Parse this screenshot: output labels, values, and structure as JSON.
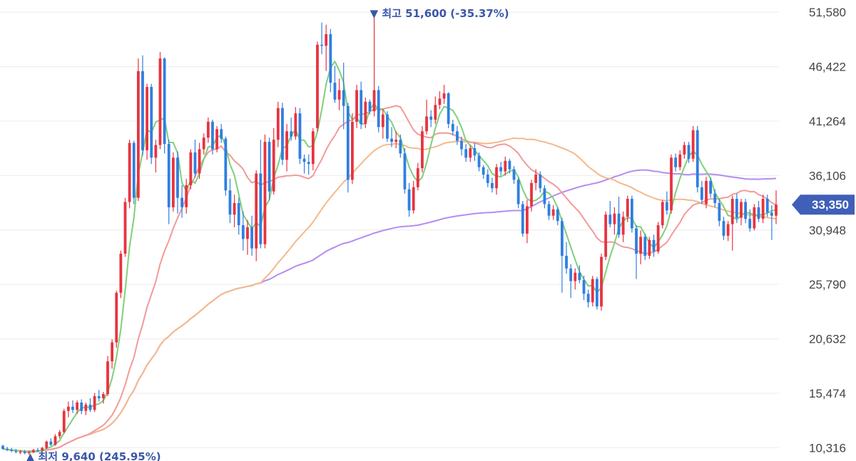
{
  "chart_data": {
    "type": "candlestick",
    "y_scale": {
      "min": 9800,
      "max": 52200
    },
    "y_ticks": [
      "51,580",
      "46,422",
      "41,264",
      "36,106",
      "30,948",
      "25,790",
      "20,632",
      "15,474",
      "10,316"
    ],
    "y_tick_values": [
      51580,
      46422,
      41264,
      36106,
      30948,
      25790,
      20632,
      15474,
      10316
    ],
    "current_price": {
      "label": "33,350",
      "value": 33350
    },
    "annotations": {
      "high": {
        "text": "최고 51,600 (-35.37%)",
        "marker": "▼",
        "value": 51600,
        "index": 85
      },
      "low": {
        "text": "최저 9,640 (245.95%)",
        "marker": "▲",
        "value": 9640,
        "index": 6
      }
    },
    "colors": {
      "up": "#e8333f",
      "down": "#2f7fe0",
      "ma5": "#7fd07a",
      "ma20": "#f29a9a",
      "ma60": "#f5b98a",
      "ma120": "#b58cf2",
      "grid": "#ececec",
      "current_badge": "#3f5fb8"
    },
    "candles": [
      [
        10500,
        10600,
        10150,
        10200
      ],
      [
        10200,
        10400,
        10000,
        10100
      ],
      [
        10100,
        10300,
        9900,
        10000
      ],
      [
        10000,
        10200,
        9800,
        9900
      ],
      [
        9900,
        10100,
        9700,
        9950
      ],
      [
        9950,
        10100,
        9700,
        9800
      ],
      [
        9800,
        10050,
        9640,
        9900
      ],
      [
        9900,
        10200,
        9800,
        10100
      ],
      [
        10100,
        10300,
        9900,
        10050
      ],
      [
        10050,
        10400,
        9950,
        10300
      ],
      [
        10300,
        11000,
        10200,
        10900
      ],
      [
        10900,
        11200,
        10500,
        10600
      ],
      [
        10600,
        11600,
        10500,
        11400
      ],
      [
        11400,
        12000,
        11200,
        11800
      ],
      [
        11800,
        14000,
        11700,
        13800
      ],
      [
        13800,
        14700,
        13200,
        14200
      ],
      [
        14200,
        14800,
        13600,
        13900
      ],
      [
        13900,
        14800,
        13500,
        14600
      ],
      [
        14600,
        14900,
        13500,
        13800
      ],
      [
        13800,
        14600,
        13400,
        14400
      ],
      [
        14400,
        15000,
        13700,
        13900
      ],
      [
        13900,
        15500,
        13700,
        15200
      ],
      [
        15200,
        15800,
        14700,
        15000
      ],
      [
        15000,
        15600,
        14500,
        15400
      ],
      [
        15400,
        19000,
        15200,
        18500
      ],
      [
        18500,
        20600,
        17800,
        20300
      ],
      [
        20300,
        25200,
        19800,
        25000
      ],
      [
        25000,
        29000,
        24500,
        28700
      ],
      [
        28700,
        34000,
        28400,
        33600
      ],
      [
        33600,
        39500,
        33000,
        39200
      ],
      [
        39200,
        39400,
        33400,
        34000
      ],
      [
        34000,
        47200,
        33700,
        46000
      ],
      [
        46000,
        47500,
        38000,
        38500
      ],
      [
        38500,
        44800,
        37600,
        44500
      ],
      [
        44500,
        44800,
        37200,
        37800
      ],
      [
        37800,
        39500,
        36400,
        39000
      ],
      [
        39000,
        47800,
        38600,
        47200
      ],
      [
        47200,
        47300,
        38200,
        39100
      ],
      [
        39100,
        39500,
        31500,
        33100
      ],
      [
        33100,
        38300,
        32700,
        37800
      ],
      [
        37800,
        38400,
        32500,
        34000
      ],
      [
        34000,
        35200,
        32100,
        33100
      ],
      [
        33100,
        35800,
        32500,
        35200
      ],
      [
        35200,
        38600,
        34800,
        38300
      ],
      [
        38300,
        39500,
        35900,
        36300
      ],
      [
        36300,
        39200,
        35800,
        38600
      ],
      [
        38600,
        40100,
        38100,
        39700
      ],
      [
        39700,
        41600,
        39200,
        41200
      ],
      [
        41200,
        41400,
        38100,
        38600
      ],
      [
        38600,
        40800,
        38300,
        40500
      ],
      [
        40500,
        41000,
        39200,
        39600
      ],
      [
        39600,
        39800,
        34200,
        34700
      ],
      [
        34700,
        35800,
        31600,
        32400
      ],
      [
        32400,
        34300,
        31200,
        33500
      ],
      [
        33500,
        34000,
        30500,
        31400
      ],
      [
        31400,
        32700,
        29000,
        30100
      ],
      [
        30100,
        31900,
        28600,
        31200
      ],
      [
        31200,
        32300,
        28500,
        29200
      ],
      [
        29200,
        36600,
        28000,
        36300
      ],
      [
        36300,
        39500,
        29200,
        29600
      ],
      [
        29600,
        40000,
        29200,
        39300
      ],
      [
        39300,
        39700,
        33800,
        34600
      ],
      [
        34600,
        40600,
        34300,
        39500
      ],
      [
        39500,
        43100,
        38800,
        42500
      ],
      [
        42500,
        43000,
        37100,
        37600
      ],
      [
        37600,
        41000,
        36500,
        40300
      ],
      [
        40300,
        41600,
        39400,
        39800
      ],
      [
        39800,
        42600,
        39500,
        42000
      ],
      [
        42000,
        42500,
        37200,
        37700
      ],
      [
        37700,
        38100,
        36300,
        37400
      ],
      [
        37400,
        38100,
        36200,
        37200
      ],
      [
        37200,
        40600,
        36600,
        40300
      ],
      [
        40600,
        48800,
        40300,
        48500
      ],
      [
        48500,
        50600,
        47600,
        48400
      ],
      [
        48400,
        50400,
        46000,
        49500
      ],
      [
        49500,
        50000,
        44000,
        44900
      ],
      [
        44900,
        46500,
        43000,
        43300
      ],
      [
        43300,
        45300,
        42300,
        44200
      ],
      [
        44200,
        46800,
        40500,
        42700
      ],
      [
        42700,
        43000,
        34500,
        35700
      ],
      [
        35700,
        42000,
        35300,
        41200
      ],
      [
        41200,
        44700,
        40600,
        44200
      ],
      [
        44200,
        45000,
        40500,
        41000
      ],
      [
        41000,
        43500,
        40600,
        43100
      ],
      [
        43100,
        43300,
        41900,
        42200
      ],
      [
        42200,
        51600,
        41700,
        44200
      ],
      [
        44200,
        44600,
        40200,
        40700
      ],
      [
        40700,
        42400,
        39600,
        41900
      ],
      [
        41900,
        42200,
        39300,
        39600
      ],
      [
        39600,
        40700,
        38800,
        39300
      ],
      [
        39300,
        40300,
        38700,
        39500
      ],
      [
        39500,
        40000,
        37800,
        38200
      ],
      [
        38200,
        38700,
        34400,
        34800
      ],
      [
        34800,
        35400,
        32200,
        32800
      ],
      [
        32800,
        35600,
        32500,
        35000
      ],
      [
        35000,
        37300,
        34700,
        36800
      ],
      [
        36800,
        40800,
        36400,
        40300
      ],
      [
        40300,
        43300,
        40000,
        41700
      ],
      [
        41700,
        42300,
        40700,
        41400
      ],
      [
        41400,
        43600,
        41000,
        42800
      ],
      [
        42800,
        44100,
        42400,
        43400
      ],
      [
        43400,
        44700,
        42900,
        43900
      ],
      [
        43900,
        44000,
        40600,
        41000
      ],
      [
        41000,
        41400,
        39900,
        40300
      ],
      [
        40300,
        40800,
        39000,
        39400
      ],
      [
        39400,
        39800,
        38000,
        38600
      ],
      [
        38600,
        39100,
        37400,
        37800
      ],
      [
        37800,
        39000,
        37400,
        38700
      ],
      [
        38700,
        39200,
        37500,
        38000
      ],
      [
        38000,
        38300,
        36500,
        36900
      ],
      [
        36900,
        37100,
        35800,
        36200
      ],
      [
        36200,
        36700,
        35000,
        35400
      ],
      [
        35400,
        35900,
        34500,
        34900
      ],
      [
        34900,
        37200,
        34300,
        36900
      ],
      [
        36900,
        37400,
        36100,
        36500
      ],
      [
        36500,
        37900,
        36100,
        37500
      ],
      [
        37500,
        37700,
        36300,
        36700
      ],
      [
        36700,
        37000,
        35300,
        35700
      ],
      [
        35700,
        35900,
        33000,
        33400
      ],
      [
        33400,
        33700,
        30300,
        30600
      ],
      [
        30600,
        33800,
        29700,
        33200
      ],
      [
        33200,
        35700,
        32700,
        35400
      ],
      [
        35400,
        36700,
        34700,
        36200
      ],
      [
        36200,
        36500,
        34500,
        34900
      ],
      [
        34900,
        35200,
        33000,
        33400
      ],
      [
        33400,
        33700,
        31900,
        32300
      ],
      [
        32300,
        33300,
        31900,
        32900
      ],
      [
        32900,
        33100,
        31400,
        31800
      ],
      [
        31800,
        32100,
        25000,
        28500
      ],
      [
        28500,
        29800,
        26800,
        27300
      ],
      [
        27300,
        27700,
        24500,
        26100
      ],
      [
        26100,
        27300,
        25300,
        26900
      ],
      [
        26900,
        27600,
        25900,
        26200
      ],
      [
        26200,
        26600,
        24300,
        24900
      ],
      [
        24900,
        25300,
        23600,
        24100
      ],
      [
        24100,
        26600,
        23700,
        26300
      ],
      [
        26300,
        26500,
        23400,
        23700
      ],
      [
        23700,
        28700,
        23300,
        28400
      ],
      [
        28400,
        32700,
        28100,
        32400
      ],
      [
        32400,
        33700,
        31200,
        31500
      ],
      [
        31500,
        33100,
        30500,
        32500
      ],
      [
        32500,
        34100,
        30200,
        30500
      ],
      [
        30500,
        32700,
        29800,
        32200
      ],
      [
        32200,
        34200,
        31700,
        33900
      ],
      [
        33900,
        34200,
        30700,
        31100
      ],
      [
        31100,
        31400,
        26300,
        28700
      ],
      [
        28700,
        30900,
        27700,
        30300
      ],
      [
        30300,
        30600,
        28100,
        28500
      ],
      [
        28500,
        30300,
        28200,
        30000
      ],
      [
        30000,
        30500,
        28400,
        28900
      ],
      [
        28900,
        31700,
        28700,
        31400
      ],
      [
        31400,
        33800,
        31100,
        33600
      ],
      [
        33600,
        34600,
        32400,
        32800
      ],
      [
        32800,
        38100,
        32500,
        37800
      ],
      [
        37800,
        38200,
        36500,
        36900
      ],
      [
        36900,
        38500,
        36600,
        38100
      ],
      [
        38100,
        39300,
        37700,
        39000
      ],
      [
        39000,
        39300,
        37300,
        37700
      ],
      [
        37700,
        40800,
        37400,
        40400
      ],
      [
        40400,
        40800,
        34500,
        35000
      ],
      [
        35000,
        35600,
        33400,
        33800
      ],
      [
        33400,
        36000,
        33000,
        35600
      ],
      [
        35600,
        35900,
        34000,
        34400
      ],
      [
        34400,
        34800,
        33100,
        33500
      ],
      [
        33500,
        33900,
        31300,
        31800
      ],
      [
        31800,
        32200,
        30000,
        30400
      ],
      [
        30400,
        31800,
        29900,
        31500
      ],
      [
        31500,
        34200,
        29000,
        33900
      ],
      [
        33900,
        34400,
        31600,
        32100
      ],
      [
        32100,
        33900,
        31400,
        33600
      ],
      [
        33600,
        33900,
        31600,
        32000
      ],
      [
        32000,
        32900,
        30800,
        31100
      ],
      [
        31100,
        33400,
        30900,
        33100
      ],
      [
        33100,
        33700,
        31700,
        32000
      ],
      [
        32000,
        34300,
        31600,
        33900
      ],
      [
        33900,
        34300,
        32200,
        32600
      ],
      [
        32600,
        33300,
        30000,
        32300
      ],
      [
        32300,
        34700,
        31500,
        33350
      ]
    ]
  }
}
